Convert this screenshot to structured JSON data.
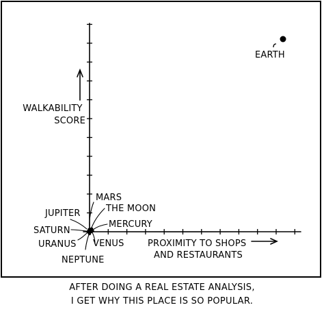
{
  "chart_data": {
    "type": "scatter",
    "title": "",
    "xlabel": "PROXIMITY TO SHOPS\nAND RESTAURANTS",
    "ylabel": "WALKABILITY\nSCORE",
    "axis_ticks": "unlabeled",
    "grid": false,
    "points": [
      {
        "label": "EARTH",
        "x": 1.0,
        "y": 1.0
      },
      {
        "label": "MARS",
        "x": 0.0,
        "y": 0.0
      },
      {
        "label": "THE MOON",
        "x": 0.0,
        "y": 0.0
      },
      {
        "label": "MERCURY",
        "x": 0.0,
        "y": 0.0
      },
      {
        "label": "VENUS",
        "x": 0.0,
        "y": 0.0
      },
      {
        "label": "NEPTUNE",
        "x": 0.0,
        "y": 0.0
      },
      {
        "label": "URANUS",
        "x": 0.0,
        "y": 0.0
      },
      {
        "label": "SATURN",
        "x": 0.0,
        "y": 0.0
      },
      {
        "label": "JUPITER",
        "x": 0.0,
        "y": 0.0
      }
    ]
  },
  "caption": {
    "line1": "AFTER DOING A REAL ESTATE ANALYSIS,",
    "line2": "I GET WHY THIS PLACE IS SO POPULAR."
  },
  "colors": {
    "ink": "#000000",
    "background": "#ffffff"
  }
}
